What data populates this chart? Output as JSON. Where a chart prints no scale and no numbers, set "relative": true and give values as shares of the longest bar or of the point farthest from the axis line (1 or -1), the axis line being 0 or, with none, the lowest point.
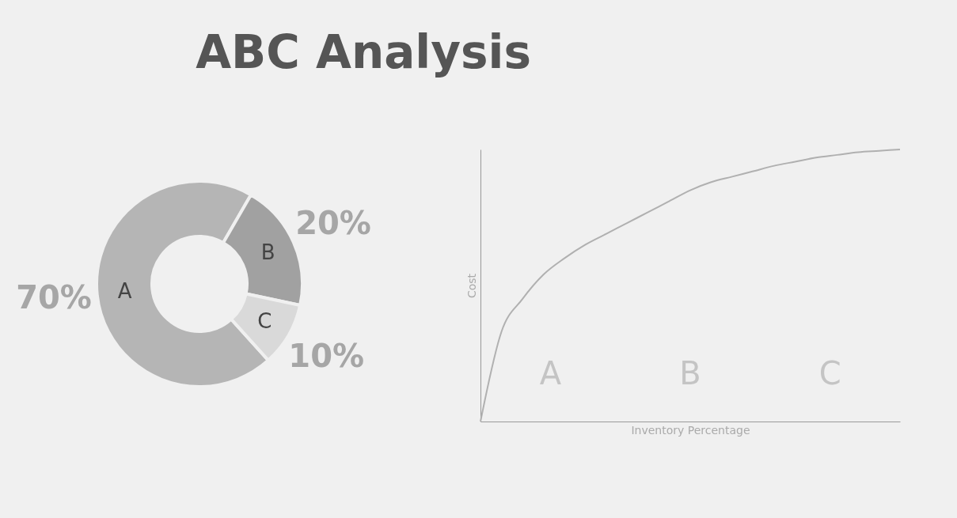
{
  "chart_data": [
    {
      "type": "donut",
      "title": "ABC Analysis",
      "categories": [
        "A",
        "B",
        "C"
      ],
      "values": [
        70,
        20,
        10
      ],
      "colors": [
        "#b5b5b5",
        "#a1a1a1",
        "#d9d9d9"
      ],
      "value_labels": [
        "70%",
        "20%",
        "10%"
      ]
    },
    {
      "type": "line",
      "relative": true,
      "xlabel": "Inventory Percentage",
      "ylabel": "Cost",
      "categories": [
        null,
        null,
        null,
        null,
        null,
        null,
        null,
        null,
        null,
        null,
        null,
        null,
        null,
        null,
        null,
        null,
        null,
        null,
        null,
        null,
        null
      ],
      "series": [
        {
          "color": "#b0b0b0",
          "values": [
            0,
            0.33,
            0.45,
            0.54,
            0.6,
            0.65,
            0.69,
            0.73,
            0.77,
            0.81,
            0.85,
            0.88,
            0.9,
            0.92,
            0.94,
            0.955,
            0.97,
            0.98,
            0.99,
            0.995,
            1
          ]
        }
      ],
      "annotations": [
        "A",
        "B",
        "C"
      ]
    }
  ]
}
